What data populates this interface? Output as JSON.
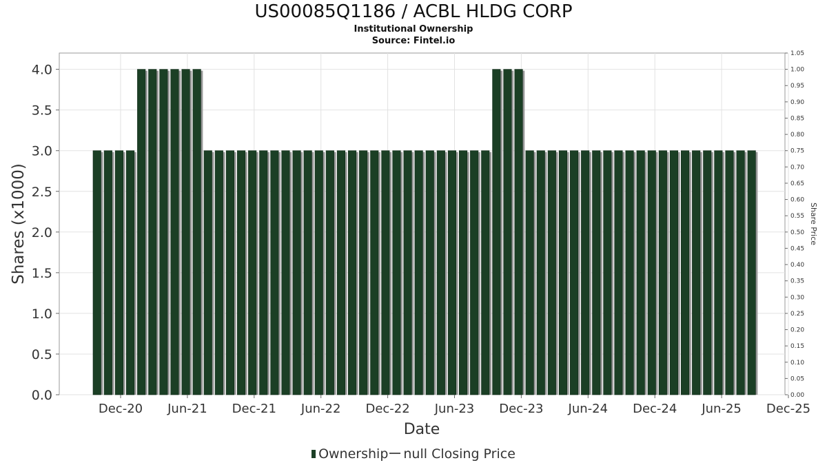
{
  "chart_data": {
    "type": "bar",
    "title": "US00085Q1186 / ACBL HLDG CORP",
    "subtitle_lines": [
      "Institutional Ownership",
      "Source: Fintel.io"
    ],
    "xlabel": "Date",
    "ylabel": "Shares (x1000)",
    "y2label": "Share Price",
    "ylim": [
      0,
      4.2
    ],
    "y_ticks": [
      "0.0",
      "0.5",
      "1.0",
      "1.5",
      "2.0",
      "2.5",
      "3.0",
      "3.5",
      "4.0"
    ],
    "y2lim": [
      0,
      1.05
    ],
    "y2_ticks": [
      "0.00",
      "0.05",
      "0.10",
      "0.15",
      "0.20",
      "0.25",
      "0.30",
      "0.35",
      "0.40",
      "0.45",
      "0.50",
      "0.55",
      "0.60",
      "0.65",
      "0.70",
      "0.75",
      "0.80",
      "0.85",
      "0.90",
      "0.95",
      "1.00",
      "1.05"
    ],
    "x_ticks": [
      "Dec-20",
      "Jun-21",
      "Dec-21",
      "Jun-22",
      "Dec-22",
      "Jun-23",
      "Dec-23",
      "Jun-24",
      "Dec-24",
      "Jun-25",
      "Dec-25"
    ],
    "grid": true,
    "legend_position": "bottom",
    "series": [
      {
        "name": "Ownership",
        "color": "#1b3f25",
        "values": [
          3.0,
          3.0,
          3.0,
          3.0,
          4.0,
          4.0,
          4.0,
          4.0,
          4.0,
          4.0,
          3.0,
          3.0,
          3.0,
          3.0,
          3.0,
          3.0,
          3.0,
          3.0,
          3.0,
          3.0,
          3.0,
          3.0,
          3.0,
          3.0,
          3.0,
          3.0,
          3.0,
          3.0,
          3.0,
          3.0,
          3.0,
          3.0,
          3.0,
          3.0,
          3.0,
          3.0,
          4.0,
          4.0,
          4.0,
          3.0,
          3.0,
          3.0,
          3.0,
          3.0,
          3.0,
          3.0,
          3.0,
          3.0,
          3.0,
          3.0,
          3.0,
          3.0,
          3.0,
          3.0,
          3.0,
          3.0,
          3.0,
          3.0,
          3.0,
          3.0
        ]
      }
    ],
    "legend_entries": [
      "Ownership",
      "null Closing Price"
    ]
  }
}
